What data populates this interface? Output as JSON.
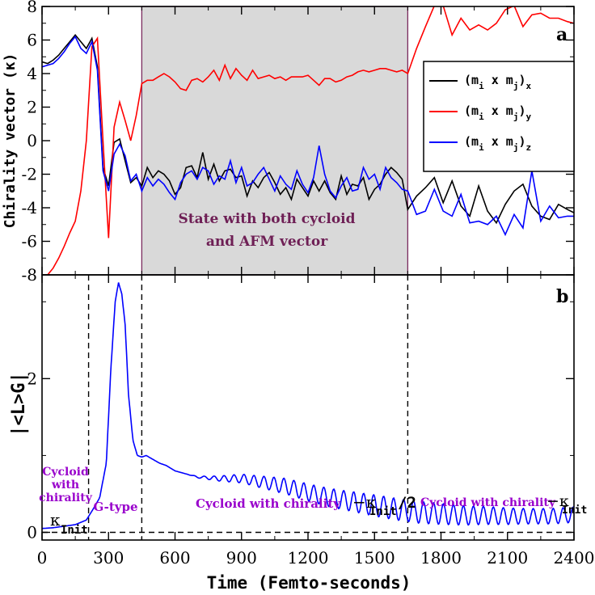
{
  "chart_data": {
    "type": "line",
    "xlabel": "Time (Femto-seconds)",
    "x_ticks": [
      0,
      300,
      600,
      900,
      1200,
      1500,
      1800,
      2100,
      2400
    ],
    "xlim": [
      0,
      2400
    ],
    "panels": [
      {
        "label": "a",
        "ylabel": "Chirality vector (κ)",
        "ylim": [
          -8,
          8
        ],
        "y_ticks": [
          -8,
          -6,
          -4,
          -2,
          0,
          2,
          4,
          6,
          8
        ],
        "shaded_region": {
          "x0": 450,
          "x1": 1650,
          "text_line1": "State with both cycloid",
          "text_line2": "and AFM vector"
        },
        "legend": {
          "position": "right",
          "entries": [
            {
              "pre": "(m",
              "sub1": "i",
              "mid": " x m",
              "sub2": "j",
              "post": ")",
              "tail": "x",
              "color": "#000000"
            },
            {
              "pre": "(m",
              "sub1": "i",
              "mid": " x m",
              "sub2": "j",
              "post": ")",
              "tail": "y",
              "color": "#ff0000"
            },
            {
              "pre": "(m",
              "sub1": "i",
              "mid": " x m",
              "sub2": "j",
              "post": ")",
              "tail": "z",
              "color": "#0000ff"
            }
          ]
        },
        "series": [
          {
            "name": "(mi x mj)x",
            "color": "#000000",
            "x": [
              0,
              25,
              50,
              75,
              100,
              125,
              150,
              175,
              200,
              225,
              250,
              275,
              300,
              325,
              350,
              375,
              400,
              425,
              450,
              475,
              500,
              525,
              550,
              575,
              600,
              625,
              650,
              675,
              700,
              725,
              750,
              775,
              800,
              825,
              850,
              875,
              900,
              925,
              950,
              975,
              1000,
              1025,
              1050,
              1075,
              1100,
              1125,
              1150,
              1175,
              1200,
              1225,
              1250,
              1275,
              1300,
              1325,
              1350,
              1375,
              1400,
              1425,
              1450,
              1475,
              1500,
              1525,
              1550,
              1575,
              1600,
              1625,
              1650,
              1690,
              1730,
              1770,
              1810,
              1850,
              1890,
              1930,
              1970,
              2010,
              2050,
              2090,
              2130,
              2170,
              2210,
              2250,
              2290,
              2330,
              2370,
              2400
            ],
            "y": [
              4.7,
              4.6,
              4.8,
              5.1,
              5.5,
              5.9,
              6.3,
              5.9,
              5.5,
              6.1,
              4.4,
              -1.6,
              -2.7,
              -0.1,
              0.1,
              -1.2,
              -2.5,
              -2.2,
              -2.7,
              -1.6,
              -2.2,
              -1.8,
              -2.0,
              -2.4,
              -3.2,
              -2.8,
              -1.6,
              -1.5,
              -2.2,
              -0.7,
              -2.3,
              -1.4,
              -2.4,
              -1.8,
              -1.7,
              -2.2,
              -2.1,
              -3.3,
              -2.4,
              -2.8,
              -2.2,
              -1.9,
              -2.5,
              -3.2,
              -2.8,
              -3.5,
              -2.3,
              -2.8,
              -3.3,
              -2.4,
              -3.0,
              -2.4,
              -3.1,
              -3.5,
              -2.1,
              -3.2,
              -2.6,
              -2.7,
              -2.2,
              -3.5,
              -2.9,
              -2.6,
              -2.0,
              -1.6,
              -1.9,
              -2.3,
              -4.1,
              -3.3,
              -2.8,
              -2.2,
              -3.7,
              -2.4,
              -3.9,
              -4.5,
              -2.7,
              -4.2,
              -4.9,
              -3.8,
              -3.0,
              -2.6,
              -3.9,
              -4.5,
              -4.7,
              -3.8,
              -4.1,
              -4.3
            ]
          },
          {
            "name": "(mi x mj)y",
            "color": "#ff0000",
            "x": [
              0,
              25,
              50,
              75,
              100,
              125,
              150,
              175,
              200,
              225,
              250,
              275,
              300,
              325,
              350,
              375,
              400,
              425,
              450,
              475,
              500,
              525,
              550,
              575,
              600,
              625,
              650,
              675,
              700,
              725,
              750,
              775,
              800,
              825,
              850,
              875,
              900,
              925,
              950,
              975,
              1000,
              1025,
              1050,
              1075,
              1100,
              1125,
              1150,
              1175,
              1200,
              1225,
              1250,
              1275,
              1300,
              1325,
              1350,
              1375,
              1400,
              1425,
              1450,
              1475,
              1500,
              1525,
              1550,
              1575,
              1600,
              1625,
              1650,
              1690,
              1730,
              1770,
              1810,
              1850,
              1890,
              1930,
              1970,
              2010,
              2050,
              2090,
              2130,
              2170,
              2210,
              2250,
              2290,
              2330,
              2370,
              2400
            ],
            "y": [
              -8.0,
              -8.0,
              -7.6,
              -7.0,
              -6.3,
              -5.5,
              -4.8,
              -3.0,
              0.0,
              5.6,
              6.1,
              0.0,
              -5.8,
              0.8,
              2.3,
              1.2,
              0.0,
              1.5,
              3.4,
              3.6,
              3.6,
              3.8,
              4.0,
              3.8,
              3.5,
              3.1,
              3.0,
              3.6,
              3.7,
              3.5,
              3.8,
              4.2,
              3.6,
              4.5,
              3.7,
              4.3,
              3.9,
              3.6,
              4.2,
              3.7,
              3.8,
              3.9,
              3.7,
              3.8,
              3.6,
              3.8,
              3.8,
              3.8,
              3.9,
              3.6,
              3.3,
              3.7,
              3.7,
              3.5,
              3.6,
              3.8,
              3.9,
              4.1,
              4.2,
              4.1,
              4.2,
              4.3,
              4.3,
              4.2,
              4.1,
              4.2,
              4.0,
              5.5,
              6.8,
              8.5,
              8.2,
              6.3,
              7.3,
              6.6,
              6.9,
              6.6,
              7.0,
              7.8,
              8.1,
              6.8,
              7.5,
              7.6,
              7.3,
              7.3,
              7.1,
              7.0
            ]
          },
          {
            "name": "(mi x mj)z",
            "color": "#0000ff",
            "x": [
              0,
              25,
              50,
              75,
              100,
              125,
              150,
              175,
              200,
              225,
              250,
              275,
              300,
              325,
              350,
              375,
              400,
              425,
              450,
              475,
              500,
              525,
              550,
              575,
              600,
              625,
              650,
              675,
              700,
              725,
              750,
              775,
              800,
              825,
              850,
              875,
              900,
              925,
              950,
              975,
              1000,
              1025,
              1050,
              1075,
              1100,
              1125,
              1150,
              1175,
              1200,
              1225,
              1250,
              1275,
              1300,
              1325,
              1350,
              1375,
              1400,
              1425,
              1450,
              1475,
              1500,
              1525,
              1550,
              1575,
              1600,
              1625,
              1650,
              1690,
              1730,
              1770,
              1810,
              1850,
              1890,
              1930,
              1970,
              2010,
              2050,
              2090,
              2130,
              2170,
              2210,
              2250,
              2290,
              2330,
              2370,
              2400
            ],
            "y": [
              4.4,
              4.5,
              4.6,
              4.9,
              5.3,
              5.8,
              6.2,
              5.5,
              5.2,
              5.9,
              4.2,
              -1.8,
              -3.0,
              -0.8,
              -0.2,
              -0.9,
              -2.4,
              -2.0,
              -3.0,
              -2.2,
              -2.7,
              -2.3,
              -2.6,
              -3.1,
              -3.5,
              -2.5,
              -2.0,
              -1.8,
              -2.3,
              -1.6,
              -1.8,
              -2.6,
              -2.1,
              -2.3,
              -1.2,
              -2.5,
              -1.6,
              -2.7,
              -2.5,
              -2.0,
              -1.6,
              -2.3,
              -3.0,
              -2.1,
              -2.6,
              -2.9,
              -1.8,
              -2.6,
              -3.1,
              -2.2,
              -0.3,
              -2.0,
              -3.0,
              -3.4,
              -2.7,
              -2.2,
              -3.0,
              -2.9,
              -1.6,
              -2.3,
              -2.0,
              -2.9,
              -1.6,
              -2.2,
              -2.5,
              -2.9,
              -3.0,
              -4.4,
              -4.2,
              -2.9,
              -4.2,
              -4.5,
              -3.2,
              -4.9,
              -4.8,
              -5.0,
              -4.5,
              -5.6,
              -4.4,
              -5.2,
              -1.8,
              -4.8,
              -3.9,
              -4.6,
              -4.5,
              -4.5
            ]
          }
        ]
      },
      {
        "label": "b",
        "ylabel": "|<L>G|",
        "ylim": [
          -0.1,
          3.35
        ],
        "y_ticks": [
          0,
          2
        ],
        "zero_line": true,
        "vlines": [
          210,
          450,
          1650
        ],
        "series": [
          {
            "name": "|<L>G|",
            "color": "#0000ff",
            "baseline_x": [
              0,
              50,
              100,
              150,
              200,
              230,
              260,
              290,
              310,
              330,
              345,
              360,
              375,
              390,
              410,
              430,
              450,
              470,
              500,
              530,
              560,
              600,
              700,
              800,
              900,
              1000,
              1100,
              1200,
              1300,
              1400,
              1500,
              1600,
              1650,
              1700,
              1800,
              1900,
              2000,
              2100,
              2200,
              2300,
              2400
            ],
            "baseline_y": [
              0.05,
              0.06,
              0.08,
              0.1,
              0.16,
              0.3,
              0.45,
              0.9,
              2.1,
              3.0,
              3.25,
              3.1,
              2.7,
              1.8,
              1.2,
              1.0,
              0.98,
              1.0,
              0.95,
              0.9,
              0.87,
              0.8,
              0.72,
              0.7,
              0.7,
              0.65,
              0.6,
              0.52,
              0.45,
              0.4,
              0.35,
              0.3,
              0.28,
              0.26,
              0.24,
              0.22,
              0.22,
              0.21,
              0.21,
              0.21,
              0.23
            ],
            "oscillation_period_fs": 45,
            "oscillation_amplitude": [
              0,
              0,
              0,
              0,
              0.05,
              0.1,
              0.12,
              0.14,
              0.14,
              0.12,
              0.1,
              0.1
            ]
          }
        ],
        "annotations": [
          {
            "text": "Cycloid",
            "color": "#9900cc"
          },
          {
            "text": "with",
            "color": "#9900cc"
          },
          {
            "text": "chirality",
            "color": "#9900cc"
          },
          {
            "text": "G-type",
            "color": "#9900cc"
          },
          {
            "text": "Cycloid with chirality ",
            "color": "#9900cc"
          },
          {
            "text": "Cycloid with chirality ",
            "color": "#9900cc"
          }
        ],
        "kappa_symbol": "−κ",
        "kappa_symbol_plain": "κ",
        "kappa_sub": "Init",
        "kappa_suffix": "/2"
      }
    ]
  }
}
